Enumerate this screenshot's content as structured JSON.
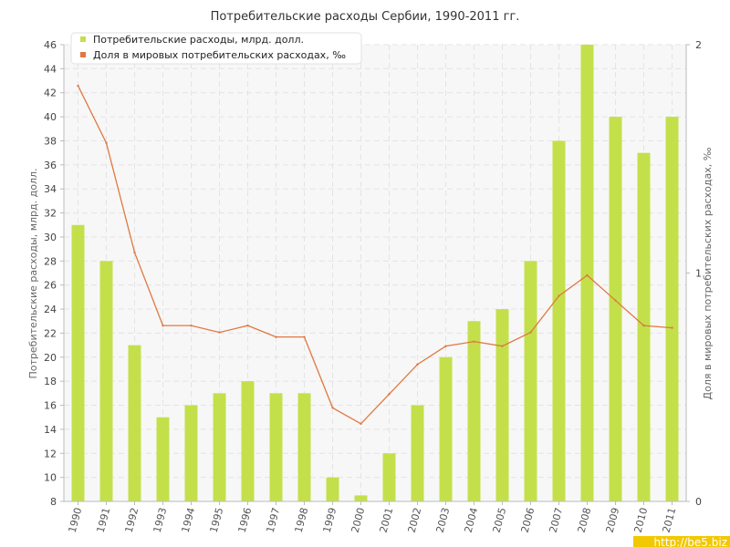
{
  "chart_data": {
    "type": "bar",
    "title": "Потребительские расходы Сербии, 1990-2011 гг.",
    "categories": [
      "1990",
      "1991",
      "1992",
      "1993",
      "1994",
      "1995",
      "1996",
      "1997",
      "1998",
      "1999",
      "2000",
      "2001",
      "2002",
      "2003",
      "2004",
      "2005",
      "2006",
      "2007",
      "2008",
      "2009",
      "2010",
      "2011"
    ],
    "series": [
      {
        "name": "Потребительские расходы, млрд. долл.",
        "kind": "bar",
        "axis": "left",
        "color": "#c3e04b",
        "values": [
          31,
          28,
          21,
          15,
          16,
          17,
          18,
          17,
          17,
          10,
          8.5,
          12,
          16,
          20,
          23,
          24,
          28,
          38,
          46,
          40,
          37,
          40
        ]
      },
      {
        "name": "Доля в мировых потребительских расходах, ‰",
        "kind": "line",
        "axis": "right",
        "color": "#e07840",
        "values": [
          1.82,
          1.57,
          1.09,
          0.77,
          0.77,
          0.74,
          0.77,
          0.72,
          0.72,
          0.41,
          0.34,
          0.47,
          0.6,
          0.68,
          0.7,
          0.68,
          0.74,
          0.9,
          0.99,
          0.88,
          0.77,
          0.76
        ]
      }
    ],
    "ylabel": "Потребительские расходы, млрд. долл.",
    "y2label": "Доля в мировых потребительских расходах, ‰",
    "ylim": [
      8,
      46
    ],
    "yticks": [
      8,
      10,
      12,
      14,
      16,
      18,
      20,
      22,
      24,
      26,
      28,
      30,
      32,
      34,
      36,
      38,
      40,
      42,
      44,
      46
    ],
    "y2lim": [
      0,
      2
    ],
    "y2ticks": [
      0,
      1,
      2
    ],
    "grid": true,
    "legend_position": "top-left"
  },
  "watermark": "http://be5.biz"
}
